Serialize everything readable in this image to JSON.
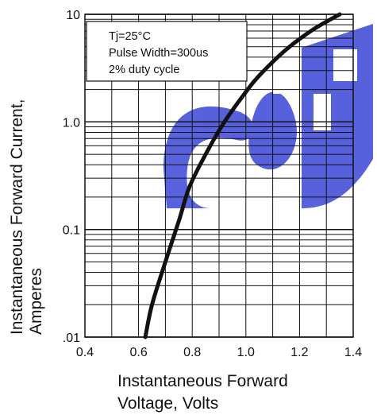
{
  "chart_data": {
    "type": "line",
    "title": "",
    "xlabel_lines": [
      "Instantaneous Forward",
      "Voltage, Volts"
    ],
    "ylabel_lines": [
      "Instantaneous Forward Current,",
      "Amperes"
    ],
    "x_scale": "linear",
    "y_scale": "log",
    "xlim": [
      0.4,
      1.4
    ],
    "ylim": [
      0.01,
      10
    ],
    "x_ticks": [
      {
        "value": 0.4,
        "label": "0.4"
      },
      {
        "value": 0.6,
        "label": "0.6"
      },
      {
        "value": 0.8,
        "label": "0.8"
      },
      {
        "value": 1.0,
        "label": "1.0"
      },
      {
        "value": 1.2,
        "label": "1.2"
      },
      {
        "value": 1.4,
        "label": "1.4"
      }
    ],
    "y_ticks": [
      {
        "value": 0.01,
        "label": ".01"
      },
      {
        "value": 0.1,
        "label": "0.1"
      },
      {
        "value": 1.0,
        "label": "1.0"
      },
      {
        "value": 10,
        "label": "10"
      }
    ],
    "grid": true,
    "annotation_lines": [
      "Tj=25°C",
      "Pulse Width=300us",
      "2% duty cycle"
    ],
    "series": [
      {
        "color": "#111111",
        "x": [
          0.625,
          0.65,
          0.7,
          0.75,
          0.79,
          0.85,
          0.92,
          1.0,
          1.05,
          1.15,
          1.25,
          1.35
        ],
        "y": [
          0.01,
          0.02,
          0.05,
          0.12,
          0.25,
          0.5,
          1.0,
          1.9,
          2.7,
          4.7,
          7.2,
          10.0
        ]
      }
    ]
  }
}
